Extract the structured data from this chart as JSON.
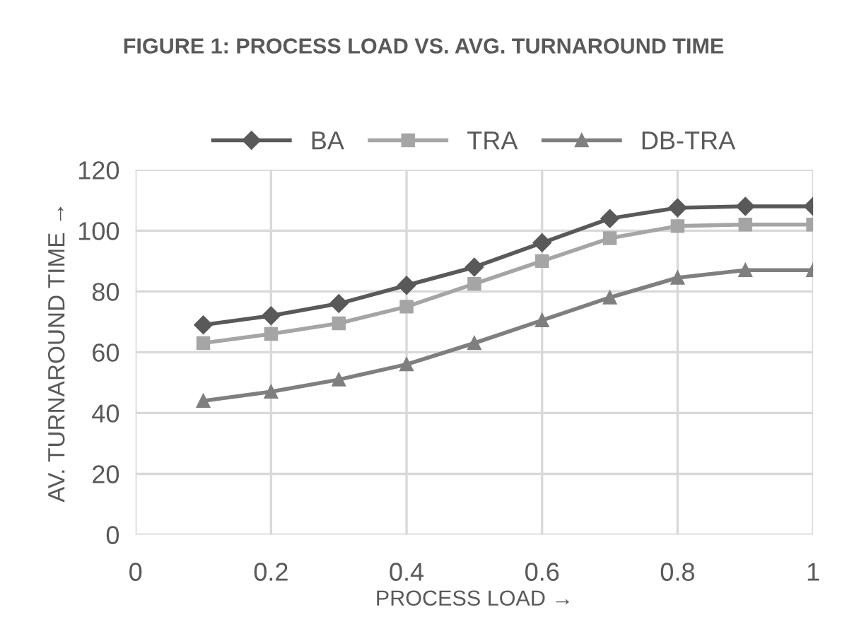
{
  "chart_data": {
    "type": "line",
    "title": "FIGURE 1: PROCESS LOAD VS. AVG. TURNAROUND TIME",
    "xlabel": "PROCESS LOAD →",
    "ylabel": "AV. TURNAROUND TIME →",
    "x": [
      0.1,
      0.2,
      0.3,
      0.4,
      0.5,
      0.6,
      0.7,
      0.8,
      0.9,
      1.0
    ],
    "series": [
      {
        "name": "BA",
        "color": "#595959",
        "marker": "diamond",
        "values": [
          69,
          72,
          76,
          82,
          88,
          96,
          104,
          107.5,
          108,
          108
        ]
      },
      {
        "name": "TRA",
        "color": "#a5a5a5",
        "marker": "square",
        "values": [
          63,
          66,
          69.5,
          75,
          82.5,
          90,
          97.5,
          101.5,
          102,
          102
        ]
      },
      {
        "name": "DB-TRA",
        "color": "#7f7f7f",
        "marker": "triangle",
        "values": [
          44,
          47,
          51,
          56,
          63,
          70.5,
          78,
          84.5,
          87,
          87
        ]
      }
    ],
    "xlim": [
      0,
      1
    ],
    "xticks": [
      0,
      0.2,
      0.4,
      0.6,
      0.8,
      1
    ],
    "ylim": [
      0,
      120
    ],
    "yticks": [
      0,
      20,
      40,
      60,
      80,
      100,
      120
    ],
    "grid": true,
    "legend": "top",
    "line_style": "solid"
  }
}
